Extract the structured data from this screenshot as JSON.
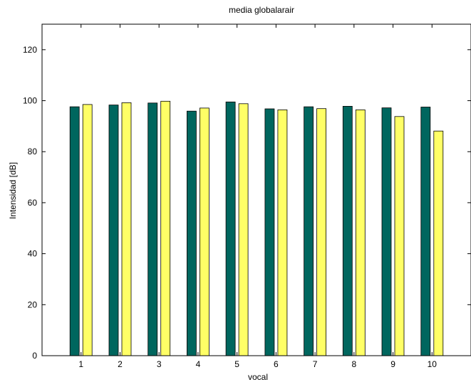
{
  "chart_data": {
    "type": "bar",
    "title": "media globalarair",
    "xlabel": "vocal",
    "ylabel": "Intensidad [dB]",
    "categories": [
      "1",
      "2",
      "3",
      "4",
      "5",
      "6",
      "7",
      "8",
      "9",
      "10"
    ],
    "series": [
      {
        "values": [
          97.6,
          98.3,
          99.1,
          95.9,
          99.5,
          96.8,
          97.6,
          97.8,
          97.2,
          97.5
        ]
      },
      {
        "values": [
          98.5,
          99.2,
          99.8,
          97.1,
          98.8,
          96.4,
          96.9,
          96.4,
          93.8,
          88.1
        ]
      }
    ],
    "ylim": [
      0,
      130
    ],
    "yticks": [
      0,
      20,
      40,
      60,
      80,
      100,
      120
    ],
    "grid": false,
    "legend": "none",
    "colors": {
      "series": [
        "#00665e",
        "#ffff66"
      ],
      "bar_edge": "#000000",
      "axes": "#000000",
      "background": "#ffffff"
    }
  }
}
